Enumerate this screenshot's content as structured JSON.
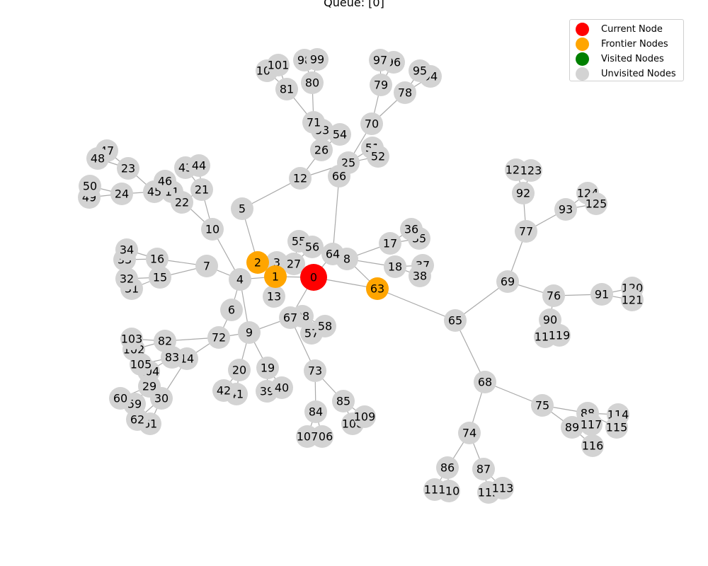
{
  "title": "Queue: [0]",
  "legend": [
    {
      "label": "Current Node",
      "color": "#ff0000"
    },
    {
      "label": "Frontier Nodes",
      "color": "#ffa500"
    },
    {
      "label": "Visited Nodes",
      "color": "#008000"
    },
    {
      "label": "Unvisited Nodes",
      "color": "#d3d3d3"
    }
  ],
  "colors": {
    "edge": "#aaaaaa"
  },
  "graph": {
    "current": [
      0
    ],
    "frontier": [
      1,
      2,
      63
    ],
    "visited": [],
    "edges": [
      [
        0,
        1
      ],
      [
        0,
        27
      ],
      [
        0,
        63
      ],
      [
        0,
        64
      ],
      [
        0,
        67
      ],
      [
        1,
        2
      ],
      [
        1,
        3
      ],
      [
        1,
        4
      ],
      [
        1,
        13
      ],
      [
        2,
        5
      ],
      [
        5,
        12
      ],
      [
        12,
        26
      ],
      [
        12,
        25
      ],
      [
        26,
        71
      ],
      [
        26,
        53
      ],
      [
        26,
        54
      ],
      [
        71,
        80
      ],
      [
        80,
        98
      ],
      [
        80,
        99
      ],
      [
        71,
        81
      ],
      [
        81,
        100
      ],
      [
        81,
        101
      ],
      [
        25,
        66
      ],
      [
        25,
        51
      ],
      [
        25,
        52
      ],
      [
        25,
        70
      ],
      [
        70,
        79
      ],
      [
        79,
        97
      ],
      [
        79,
        96
      ],
      [
        70,
        78
      ],
      [
        78,
        95
      ],
      [
        78,
        94
      ],
      [
        4,
        7
      ],
      [
        7,
        16
      ],
      [
        7,
        15
      ],
      [
        16,
        34
      ],
      [
        16,
        33
      ],
      [
        15,
        32
      ],
      [
        15,
        31
      ],
      [
        4,
        10
      ],
      [
        10,
        21
      ],
      [
        10,
        11
      ],
      [
        21,
        43
      ],
      [
        21,
        44
      ],
      [
        21,
        22
      ],
      [
        11,
        45
      ],
      [
        11,
        46
      ],
      [
        45,
        24
      ],
      [
        45,
        23
      ],
      [
        24,
        50
      ],
      [
        24,
        49
      ],
      [
        23,
        47
      ],
      [
        23,
        48
      ],
      [
        4,
        6
      ],
      [
        4,
        9
      ],
      [
        6,
        72
      ],
      [
        9,
        72
      ],
      [
        9,
        20
      ],
      [
        9,
        19
      ],
      [
        9,
        67
      ],
      [
        20,
        42
      ],
      [
        20,
        41
      ],
      [
        19,
        39
      ],
      [
        19,
        40
      ],
      [
        72,
        82
      ],
      [
        72,
        14
      ],
      [
        82,
        103
      ],
      [
        82,
        102
      ],
      [
        14,
        83
      ],
      [
        14,
        30
      ],
      [
        83,
        105
      ],
      [
        83,
        104
      ],
      [
        30,
        29
      ],
      [
        29,
        60
      ],
      [
        29,
        59
      ],
      [
        30,
        62
      ],
      [
        30,
        61
      ],
      [
        3,
        27
      ],
      [
        27,
        55
      ],
      [
        27,
        56
      ],
      [
        64,
        66
      ],
      [
        64,
        8
      ],
      [
        8,
        17
      ],
      [
        8,
        18
      ],
      [
        8,
        63
      ],
      [
        17,
        36
      ],
      [
        17,
        35
      ],
      [
        18,
        37
      ],
      [
        18,
        38
      ],
      [
        67,
        28
      ],
      [
        28,
        57
      ],
      [
        28,
        58
      ],
      [
        67,
        73
      ],
      [
        73,
        84
      ],
      [
        73,
        85
      ],
      [
        84,
        107
      ],
      [
        84,
        106
      ],
      [
        85,
        108
      ],
      [
        85,
        109
      ],
      [
        63,
        65
      ],
      [
        65,
        69
      ],
      [
        65,
        68
      ],
      [
        69,
        77
      ],
      [
        77,
        92
      ],
      [
        92,
        122
      ],
      [
        92,
        123
      ],
      [
        77,
        93
      ],
      [
        93,
        124
      ],
      [
        93,
        125
      ],
      [
        69,
        76
      ],
      [
        76,
        91
      ],
      [
        91,
        120
      ],
      [
        91,
        121
      ],
      [
        76,
        90
      ],
      [
        90,
        118
      ],
      [
        90,
        119
      ],
      [
        68,
        74
      ],
      [
        68,
        75
      ],
      [
        74,
        86
      ],
      [
        74,
        87
      ],
      [
        86,
        111
      ],
      [
        86,
        110
      ],
      [
        87,
        112
      ],
      [
        87,
        113
      ],
      [
        75,
        88
      ],
      [
        75,
        89
      ],
      [
        88,
        114
      ],
      [
        88,
        115
      ],
      [
        89,
        117
      ],
      [
        89,
        116
      ]
    ]
  }
}
